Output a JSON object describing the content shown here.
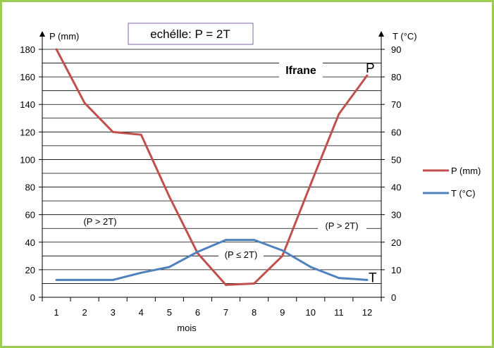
{
  "chart_data": {
    "type": "line",
    "title": "echélle: P = 2T",
    "station": "Ifrane",
    "xlabel": "mois",
    "ylabel_left": "P (mm)",
    "ylabel_right": "T (°C)",
    "x": [
      1,
      2,
      3,
      4,
      5,
      6,
      7,
      8,
      9,
      10,
      11,
      12
    ],
    "ylim_left": [
      0,
      180
    ],
    "ylim_right": [
      0,
      90
    ],
    "y_left_ticks": [
      0,
      20,
      40,
      60,
      80,
      100,
      120,
      140,
      160,
      180
    ],
    "y_right_ticks": [
      0,
      10,
      20,
      30,
      40,
      50,
      60,
      70,
      80,
      90
    ],
    "grid": true,
    "legend_position": "right",
    "series": [
      {
        "name": "P (mm)",
        "axis": "left",
        "color": "#c0504d",
        "end_label": "P",
        "values": [
          180,
          141,
          120,
          118,
          73,
          32,
          9,
          10,
          30,
          82,
          133,
          161
        ]
      },
      {
        "name": "T (°C)",
        "axis": "right",
        "color": "#4f81bd",
        "end_label": "T",
        "values": [
          6.3,
          6.3,
          6.3,
          8.9,
          11,
          16.5,
          20.8,
          20.8,
          17,
          11,
          7,
          6.3
        ]
      }
    ],
    "annotations": {
      "left_zone": "(P > 2T)",
      "right_zone": "(P > 2T)",
      "middle_zone": "(P ≤ 2T)"
    }
  }
}
